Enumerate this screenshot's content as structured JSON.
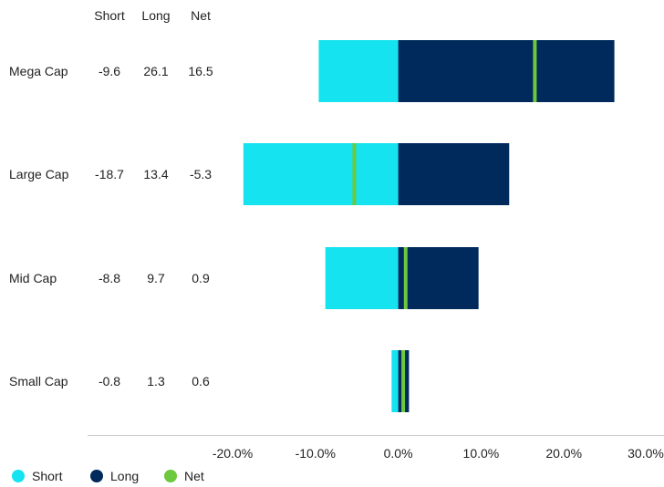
{
  "chart_data": {
    "type": "bar",
    "orientation": "horizontal",
    "categories": [
      "Mega Cap",
      "Large Cap",
      "Mid Cap",
      "Small Cap"
    ],
    "table_headers": [
      "Short",
      "Long",
      "Net"
    ],
    "table_values": [
      [
        "-9.6",
        "26.1",
        "16.5"
      ],
      [
        "-18.7",
        "13.4",
        "-5.3"
      ],
      [
        "-8.8",
        "9.7",
        "0.9"
      ],
      [
        "-0.8",
        "1.3",
        "0.6"
      ]
    ],
    "series": [
      {
        "name": "Short",
        "values": [
          -9.6,
          -18.7,
          -8.8,
          -0.8
        ],
        "color": "#16e3f0",
        "mark": "bar"
      },
      {
        "name": "Long",
        "values": [
          26.1,
          13.4,
          9.7,
          1.3
        ],
        "color": "#002a5c",
        "mark": "bar"
      },
      {
        "name": "Net",
        "values": [
          16.5,
          -5.3,
          0.9,
          0.6
        ],
        "color": "#6cc83c",
        "mark": "marker"
      }
    ],
    "x_ticks": [
      "-20.0%",
      "-10.0%",
      "0.0%",
      "10.0%",
      "20.0%",
      "30.0%"
    ],
    "x_tick_values": [
      -20,
      -10,
      0,
      10,
      20,
      30
    ],
    "xlim": [
      -20,
      30
    ],
    "grid": false,
    "legend_position": "bottom-left"
  }
}
